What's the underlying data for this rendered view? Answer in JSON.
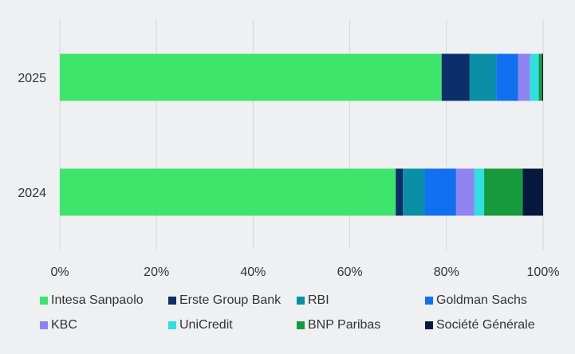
{
  "chart_data": {
    "type": "bar",
    "orientation": "horizontal",
    "stacked": true,
    "normalized": true,
    "title": "",
    "xlabel": "",
    "ylabel": "",
    "xlim": [
      0,
      100
    ],
    "grid": true,
    "legend_position": "bottom",
    "categories": [
      "2025",
      "2024"
    ],
    "x_ticks": [
      "0%",
      "20%",
      "40%",
      "60%",
      "80%",
      "100%"
    ],
    "series": [
      {
        "name": "Intesa Sanpaolo",
        "color": "#3de56b",
        "values": [
          79.0,
          69.5
        ]
      },
      {
        "name": "Erste Group Bank",
        "color": "#0b2f6b",
        "values": [
          5.8,
          1.5
        ]
      },
      {
        "name": "RBI",
        "color": "#0b8fa6",
        "values": [
          5.5,
          4.5
        ]
      },
      {
        "name": "Goldman Sachs",
        "color": "#1170f0",
        "values": [
          4.5,
          6.5
        ]
      },
      {
        "name": "KBC",
        "color": "#8f84f0",
        "values": [
          2.5,
          3.8
        ]
      },
      {
        "name": "UniCredit",
        "color": "#30dfe0",
        "values": [
          1.8,
          2.0
        ]
      },
      {
        "name": "BNP Paribas",
        "color": "#169a3c",
        "values": [
          0.7,
          8.0
        ]
      },
      {
        "name": "Société Générale",
        "color": "#06183d",
        "values": [
          0.2,
          4.2
        ]
      }
    ]
  }
}
